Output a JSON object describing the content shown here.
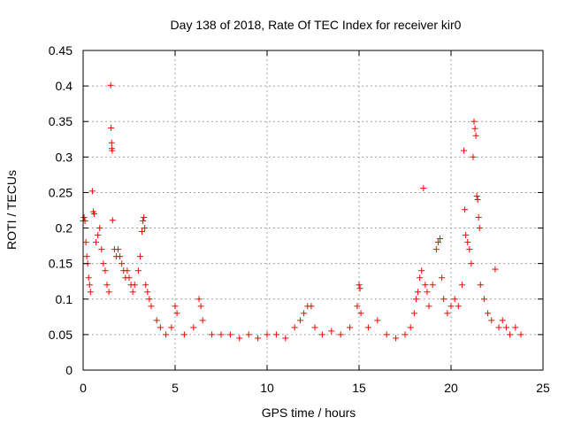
{
  "chart_data": {
    "type": "scatter",
    "title": "Day 138 of 2018, Rate Of TEC Index for receiver kir0",
    "xlabel": "GPS time / hours",
    "ylabel": "ROTI / TECUs",
    "xlim": [
      0,
      25
    ],
    "ylim": [
      0,
      0.45
    ],
    "xticks": [
      0,
      5,
      10,
      15,
      20,
      25
    ],
    "xtick_labels": [
      "0",
      "5",
      "10",
      "15",
      "20",
      "25"
    ],
    "yticks": [
      0,
      0.05,
      0.1,
      0.15,
      0.2,
      0.25,
      0.3,
      0.35,
      0.4,
      0.45
    ],
    "ytick_labels": [
      "0",
      "0.05",
      "0.1",
      "0.15",
      "0.2",
      "0.25",
      "0.3",
      "0.35",
      "0.4",
      "0.45"
    ],
    "grid": true,
    "marker": "+",
    "series": [
      {
        "name": "ROTI",
        "color": "#ff0000",
        "points": [
          [
            0.0,
            0.21
          ],
          [
            0.05,
            0.215
          ],
          [
            0.1,
            0.21
          ],
          [
            0.15,
            0.18
          ],
          [
            0.2,
            0.16
          ],
          [
            0.25,
            0.15
          ],
          [
            0.3,
            0.13
          ],
          [
            0.35,
            0.12
          ],
          [
            0.4,
            0.11
          ],
          [
            0.5,
            0.252
          ],
          [
            0.55,
            0.223
          ],
          [
            0.6,
            0.22
          ],
          [
            0.7,
            0.18
          ],
          [
            0.8,
            0.19
          ],
          [
            0.9,
            0.2
          ],
          [
            1.0,
            0.17
          ],
          [
            1.1,
            0.15
          ],
          [
            1.2,
            0.14
          ],
          [
            1.3,
            0.12
          ],
          [
            1.4,
            0.11
          ],
          [
            1.5,
            0.401
          ],
          [
            1.52,
            0.341
          ],
          [
            1.55,
            0.32
          ],
          [
            1.56,
            0.312
          ],
          [
            1.58,
            0.309
          ],
          [
            1.6,
            0.211
          ],
          [
            1.7,
            0.17
          ],
          [
            1.8,
            0.16
          ],
          [
            1.9,
            0.17
          ],
          [
            2.0,
            0.16
          ],
          [
            2.1,
            0.15
          ],
          [
            2.2,
            0.14
          ],
          [
            2.3,
            0.13
          ],
          [
            2.4,
            0.14
          ],
          [
            2.5,
            0.13
          ],
          [
            2.6,
            0.12
          ],
          [
            2.7,
            0.11
          ],
          [
            2.8,
            0.12
          ],
          [
            3.0,
            0.14
          ],
          [
            3.1,
            0.16
          ],
          [
            3.2,
            0.195
          ],
          [
            3.25,
            0.21
          ],
          [
            3.3,
            0.215
          ],
          [
            3.35,
            0.2
          ],
          [
            3.4,
            0.12
          ],
          [
            3.5,
            0.11
          ],
          [
            3.6,
            0.1
          ],
          [
            3.7,
            0.09
          ],
          [
            4.0,
            0.07
          ],
          [
            4.2,
            0.06
          ],
          [
            4.5,
            0.05
          ],
          [
            4.8,
            0.06
          ],
          [
            5.0,
            0.09
          ],
          [
            5.1,
            0.08
          ],
          [
            5.5,
            0.05
          ],
          [
            6.0,
            0.06
          ],
          [
            6.3,
            0.1
          ],
          [
            6.4,
            0.09
          ],
          [
            6.5,
            0.07
          ],
          [
            7.0,
            0.05
          ],
          [
            7.5,
            0.05
          ],
          [
            8.0,
            0.05
          ],
          [
            8.5,
            0.045
          ],
          [
            9.0,
            0.05
          ],
          [
            9.5,
            0.045
          ],
          [
            10.0,
            0.05
          ],
          [
            10.5,
            0.05
          ],
          [
            11.0,
            0.045
          ],
          [
            11.5,
            0.06
          ],
          [
            11.8,
            0.07
          ],
          [
            12.0,
            0.08
          ],
          [
            12.2,
            0.09
          ],
          [
            12.4,
            0.09
          ],
          [
            12.6,
            0.06
          ],
          [
            13.0,
            0.05
          ],
          [
            13.5,
            0.055
          ],
          [
            14.0,
            0.05
          ],
          [
            14.5,
            0.06
          ],
          [
            14.9,
            0.09
          ],
          [
            15.0,
            0.12
          ],
          [
            15.05,
            0.115
          ],
          [
            15.1,
            0.08
          ],
          [
            15.5,
            0.06
          ],
          [
            16.0,
            0.07
          ],
          [
            16.5,
            0.05
          ],
          [
            17.0,
            0.045
          ],
          [
            17.5,
            0.05
          ],
          [
            17.8,
            0.06
          ],
          [
            18.0,
            0.08
          ],
          [
            18.1,
            0.1
          ],
          [
            18.2,
            0.11
          ],
          [
            18.3,
            0.13
          ],
          [
            18.4,
            0.14
          ],
          [
            18.5,
            0.256
          ],
          [
            18.6,
            0.12
          ],
          [
            18.7,
            0.11
          ],
          [
            18.8,
            0.09
          ],
          [
            19.0,
            0.12
          ],
          [
            19.2,
            0.17
          ],
          [
            19.3,
            0.18
          ],
          [
            19.4,
            0.185
          ],
          [
            19.5,
            0.13
          ],
          [
            19.6,
            0.1
          ],
          [
            19.8,
            0.08
          ],
          [
            20.0,
            0.09
          ],
          [
            20.2,
            0.1
          ],
          [
            20.4,
            0.09
          ],
          [
            20.6,
            0.12
          ],
          [
            20.7,
            0.309
          ],
          [
            20.75,
            0.226
          ],
          [
            20.8,
            0.19
          ],
          [
            20.9,
            0.18
          ],
          [
            21.0,
            0.17
          ],
          [
            21.1,
            0.15
          ],
          [
            21.2,
            0.3
          ],
          [
            21.25,
            0.35
          ],
          [
            21.3,
            0.34
          ],
          [
            21.35,
            0.33
          ],
          [
            21.4,
            0.245
          ],
          [
            21.45,
            0.24
          ],
          [
            21.5,
            0.215
          ],
          [
            21.55,
            0.2
          ],
          [
            21.6,
            0.12
          ],
          [
            21.8,
            0.1
          ],
          [
            22.0,
            0.08
          ],
          [
            22.2,
            0.07
          ],
          [
            22.4,
            0.142
          ],
          [
            22.6,
            0.06
          ],
          [
            22.8,
            0.07
          ],
          [
            23.0,
            0.06
          ],
          [
            23.2,
            0.05
          ],
          [
            23.5,
            0.06
          ],
          [
            23.8,
            0.05
          ]
        ]
      }
    ]
  }
}
